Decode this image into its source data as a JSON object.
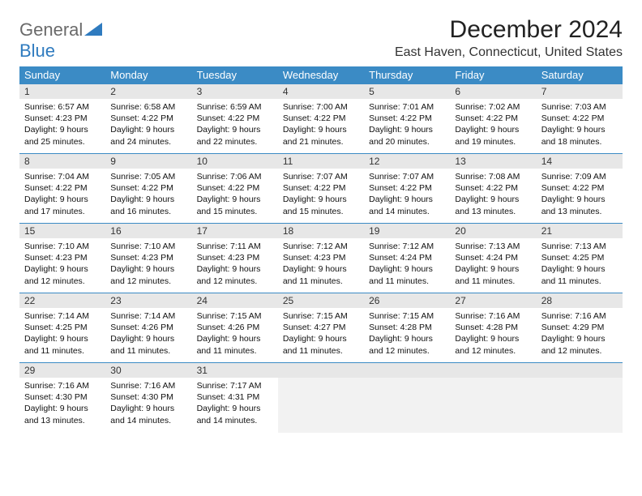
{
  "logo": {
    "word1": "General",
    "word2": "Blue"
  },
  "title": "December 2024",
  "location": "East Haven, Connecticut, United States",
  "colors": {
    "header_bg": "#3b8bc5",
    "header_text": "#ffffff",
    "daynum_bg": "#e7e7e7",
    "border": "#3b8bc5",
    "logo_gray": "#6a6a6a",
    "logo_blue": "#2f7bbf"
  },
  "weekdays": [
    "Sunday",
    "Monday",
    "Tuesday",
    "Wednesday",
    "Thursday",
    "Friday",
    "Saturday"
  ],
  "weeks": [
    [
      {
        "num": "1",
        "sunrise": "Sunrise: 6:57 AM",
        "sunset": "Sunset: 4:23 PM",
        "daylight": "Daylight: 9 hours and 25 minutes."
      },
      {
        "num": "2",
        "sunrise": "Sunrise: 6:58 AM",
        "sunset": "Sunset: 4:22 PM",
        "daylight": "Daylight: 9 hours and 24 minutes."
      },
      {
        "num": "3",
        "sunrise": "Sunrise: 6:59 AM",
        "sunset": "Sunset: 4:22 PM",
        "daylight": "Daylight: 9 hours and 22 minutes."
      },
      {
        "num": "4",
        "sunrise": "Sunrise: 7:00 AM",
        "sunset": "Sunset: 4:22 PM",
        "daylight": "Daylight: 9 hours and 21 minutes."
      },
      {
        "num": "5",
        "sunrise": "Sunrise: 7:01 AM",
        "sunset": "Sunset: 4:22 PM",
        "daylight": "Daylight: 9 hours and 20 minutes."
      },
      {
        "num": "6",
        "sunrise": "Sunrise: 7:02 AM",
        "sunset": "Sunset: 4:22 PM",
        "daylight": "Daylight: 9 hours and 19 minutes."
      },
      {
        "num": "7",
        "sunrise": "Sunrise: 7:03 AM",
        "sunset": "Sunset: 4:22 PM",
        "daylight": "Daylight: 9 hours and 18 minutes."
      }
    ],
    [
      {
        "num": "8",
        "sunrise": "Sunrise: 7:04 AM",
        "sunset": "Sunset: 4:22 PM",
        "daylight": "Daylight: 9 hours and 17 minutes."
      },
      {
        "num": "9",
        "sunrise": "Sunrise: 7:05 AM",
        "sunset": "Sunset: 4:22 PM",
        "daylight": "Daylight: 9 hours and 16 minutes."
      },
      {
        "num": "10",
        "sunrise": "Sunrise: 7:06 AM",
        "sunset": "Sunset: 4:22 PM",
        "daylight": "Daylight: 9 hours and 15 minutes."
      },
      {
        "num": "11",
        "sunrise": "Sunrise: 7:07 AM",
        "sunset": "Sunset: 4:22 PM",
        "daylight": "Daylight: 9 hours and 15 minutes."
      },
      {
        "num": "12",
        "sunrise": "Sunrise: 7:07 AM",
        "sunset": "Sunset: 4:22 PM",
        "daylight": "Daylight: 9 hours and 14 minutes."
      },
      {
        "num": "13",
        "sunrise": "Sunrise: 7:08 AM",
        "sunset": "Sunset: 4:22 PM",
        "daylight": "Daylight: 9 hours and 13 minutes."
      },
      {
        "num": "14",
        "sunrise": "Sunrise: 7:09 AM",
        "sunset": "Sunset: 4:22 PM",
        "daylight": "Daylight: 9 hours and 13 minutes."
      }
    ],
    [
      {
        "num": "15",
        "sunrise": "Sunrise: 7:10 AM",
        "sunset": "Sunset: 4:23 PM",
        "daylight": "Daylight: 9 hours and 12 minutes."
      },
      {
        "num": "16",
        "sunrise": "Sunrise: 7:10 AM",
        "sunset": "Sunset: 4:23 PM",
        "daylight": "Daylight: 9 hours and 12 minutes."
      },
      {
        "num": "17",
        "sunrise": "Sunrise: 7:11 AM",
        "sunset": "Sunset: 4:23 PM",
        "daylight": "Daylight: 9 hours and 12 minutes."
      },
      {
        "num": "18",
        "sunrise": "Sunrise: 7:12 AM",
        "sunset": "Sunset: 4:23 PM",
        "daylight": "Daylight: 9 hours and 11 minutes."
      },
      {
        "num": "19",
        "sunrise": "Sunrise: 7:12 AM",
        "sunset": "Sunset: 4:24 PM",
        "daylight": "Daylight: 9 hours and 11 minutes."
      },
      {
        "num": "20",
        "sunrise": "Sunrise: 7:13 AM",
        "sunset": "Sunset: 4:24 PM",
        "daylight": "Daylight: 9 hours and 11 minutes."
      },
      {
        "num": "21",
        "sunrise": "Sunrise: 7:13 AM",
        "sunset": "Sunset: 4:25 PM",
        "daylight": "Daylight: 9 hours and 11 minutes."
      }
    ],
    [
      {
        "num": "22",
        "sunrise": "Sunrise: 7:14 AM",
        "sunset": "Sunset: 4:25 PM",
        "daylight": "Daylight: 9 hours and 11 minutes."
      },
      {
        "num": "23",
        "sunrise": "Sunrise: 7:14 AM",
        "sunset": "Sunset: 4:26 PM",
        "daylight": "Daylight: 9 hours and 11 minutes."
      },
      {
        "num": "24",
        "sunrise": "Sunrise: 7:15 AM",
        "sunset": "Sunset: 4:26 PM",
        "daylight": "Daylight: 9 hours and 11 minutes."
      },
      {
        "num": "25",
        "sunrise": "Sunrise: 7:15 AM",
        "sunset": "Sunset: 4:27 PM",
        "daylight": "Daylight: 9 hours and 11 minutes."
      },
      {
        "num": "26",
        "sunrise": "Sunrise: 7:15 AM",
        "sunset": "Sunset: 4:28 PM",
        "daylight": "Daylight: 9 hours and 12 minutes."
      },
      {
        "num": "27",
        "sunrise": "Sunrise: 7:16 AM",
        "sunset": "Sunset: 4:28 PM",
        "daylight": "Daylight: 9 hours and 12 minutes."
      },
      {
        "num": "28",
        "sunrise": "Sunrise: 7:16 AM",
        "sunset": "Sunset: 4:29 PM",
        "daylight": "Daylight: 9 hours and 12 minutes."
      }
    ],
    [
      {
        "num": "29",
        "sunrise": "Sunrise: 7:16 AM",
        "sunset": "Sunset: 4:30 PM",
        "daylight": "Daylight: 9 hours and 13 minutes."
      },
      {
        "num": "30",
        "sunrise": "Sunrise: 7:16 AM",
        "sunset": "Sunset: 4:30 PM",
        "daylight": "Daylight: 9 hours and 14 minutes."
      },
      {
        "num": "31",
        "sunrise": "Sunrise: 7:17 AM",
        "sunset": "Sunset: 4:31 PM",
        "daylight": "Daylight: 9 hours and 14 minutes."
      },
      null,
      null,
      null,
      null
    ]
  ]
}
